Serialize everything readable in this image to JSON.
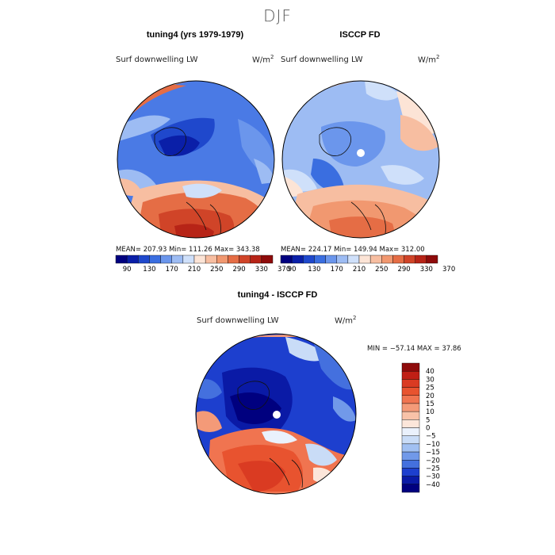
{
  "season": "DJF",
  "panels": [
    {
      "title": "tuning4 (yrs 1979-1979)",
      "variable": "Surf downwelling LW",
      "units": "W/m",
      "units_exp": "2",
      "stats_text": "MEAN= 207.93   Min= 111.26   Max= 343.38"
    },
    {
      "title": "ISCCP FD",
      "variable": "Surf downwelling LW",
      "units": "W/m",
      "units_exp": "2",
      "stats_text": "MEAN= 224.17   Min= 149.94   Max= 312.00"
    }
  ],
  "shared_colorbar": {
    "levels": [
      90,
      130,
      170,
      210,
      250,
      290,
      330,
      370
    ],
    "colors": [
      "#00007f",
      "#0a1fa8",
      "#1f48cc",
      "#3a6ee0",
      "#6b96ec",
      "#9dbcf3",
      "#cfe0fa",
      "#fce4d6",
      "#f7bea1",
      "#f19870",
      "#e56d45",
      "#d04428",
      "#b72417",
      "#8e0b0b"
    ]
  },
  "difference": {
    "title": "tuning4 - ISCCP FD",
    "variable": "Surf downwelling LW",
    "units": "W/m",
    "units_exp": "2",
    "stats_text": "MIN = −57.14  MAX =   37.86",
    "colorbar": {
      "labels": [
        "40",
        "30",
        "25",
        "20",
        "15",
        "10",
        "5",
        "0",
        "−5",
        "−10",
        "−15",
        "−20",
        "−25",
        "−30",
        "−40"
      ],
      "colors": [
        "#8e0b0b",
        "#c01f15",
        "#da3b22",
        "#e8532f",
        "#f07450",
        "#f49a78",
        "#f8c2a8",
        "#fce6da",
        "#eaf1fc",
        "#c9dcf7",
        "#a1c0f2",
        "#7199e9",
        "#4470de",
        "#1d3fce",
        "#0a1aa6",
        "#00007f"
      ]
    }
  },
  "chart_data": [
    {
      "type": "heatmap",
      "title": "tuning4 (yrs 1979-1979)",
      "variable": "Surf downwelling LW",
      "units": "W/m2",
      "projection": "north polar stereographic",
      "mean": 207.93,
      "min": 111.26,
      "max": 343.38,
      "contour_levels": [
        90,
        130,
        170,
        210,
        250,
        290,
        330,
        370
      ]
    },
    {
      "type": "heatmap",
      "title": "ISCCP FD",
      "variable": "Surf downwelling LW",
      "units": "W/m2",
      "projection": "north polar stereographic",
      "mean": 224.17,
      "min": 149.94,
      "max": 312.0,
      "contour_levels": [
        90,
        130,
        170,
        210,
        250,
        290,
        330,
        370
      ]
    },
    {
      "type": "heatmap",
      "title": "tuning4 - ISCCP FD",
      "variable": "Surf downwelling LW",
      "units": "W/m2",
      "projection": "north polar stereographic",
      "min": -57.14,
      "max": 37.86,
      "contour_levels": [
        -40,
        -30,
        -25,
        -20,
        -15,
        -10,
        -5,
        0,
        5,
        10,
        15,
        20,
        25,
        30,
        40
      ]
    }
  ]
}
